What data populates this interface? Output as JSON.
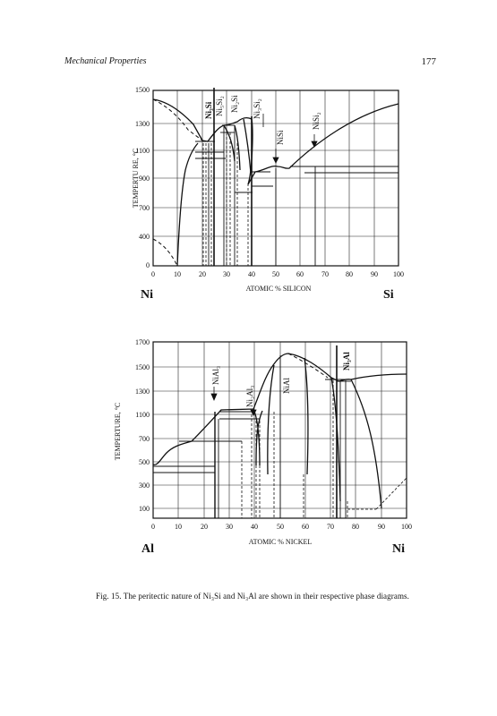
{
  "header": {
    "title": "Mechanical Properties",
    "page": "177"
  },
  "figure_caption": "Fig. 15. The peritectic nature of  Ni₃Si and  Ni₃Al are shown in their respective phase diagrams.",
  "chart_data": [
    {
      "type": "line",
      "ylabel": "TEMPERTU RE, °C",
      "xlabel": "ATOMIC % SILICON",
      "x_ticks": [
        "0",
        "10",
        "20",
        "30",
        "40",
        "50",
        "60",
        "70",
        "80",
        "90",
        "100"
      ],
      "y_ticks": [
        "0",
        "400",
        "700",
        "900",
        "1100",
        "1300",
        "1500"
      ],
      "xlim": [
        0,
        100
      ],
      "ylim": [
        0,
        1500
      ],
      "left_element": "Ni",
      "right_element": "Si",
      "phases": [
        "Ni₃Si",
        "Ni₅Si₂",
        "Ni₂Si",
        "Ni₃Si₂",
        "NiSi",
        "NiSi₂"
      ],
      "series": [
        {
          "values": [
            [
              0,
              1455
            ],
            [
              8,
              1415
            ],
            [
              16,
              1290
            ],
            [
              22,
              1160
            ],
            [
              25,
              1170
            ],
            [
              29,
              1245
            ],
            [
              33,
              1265
            ],
            [
              36,
              1290
            ],
            [
              40,
              1215
            ],
            [
              43,
              1050
            ],
            [
              45,
              1000
            ],
            [
              51,
              1010
            ],
            [
              56,
              990
            ],
            [
              60,
              1040
            ],
            [
              70,
              1150
            ],
            [
              80,
              1255
            ],
            [
              90,
              1330
            ],
            [
              100,
              1410
            ]
          ]
        },
        {
          "values": [
            [
              0,
              1455
            ],
            [
              8,
              1380
            ],
            [
              16,
              1250
            ],
            [
              22,
              1160
            ]
          ]
        },
        {
          "values": [
            [
              0,
              400
            ],
            [
              5,
              270
            ],
            [
              9,
              120
            ],
            [
              10,
              0
            ]
          ]
        },
        {
          "values": [
            [
              10,
              0
            ],
            [
              11,
              600
            ],
            [
              14,
              980
            ],
            [
              18,
              1110
            ],
            [
              21,
              1160
            ]
          ]
        }
      ]
    },
    {
      "type": "line",
      "ylabel": "TEMPERTURE, °C",
      "xlabel": "ATOMIC % NICKEL",
      "x_ticks": [
        "0",
        "10",
        "20",
        "30",
        "40",
        "50",
        "60",
        "70",
        "80",
        "90",
        "100"
      ],
      "y_ticks": [
        "100",
        "300",
        "500",
        "700",
        "1100",
        "1300",
        "1500",
        "1700"
      ],
      "xlim": [
        0,
        100
      ],
      "ylim": [
        0,
        1700
      ],
      "left_element": "Al",
      "right_element": "Ni",
      "phases": [
        "NiAl₃",
        "Ni₂Al₃",
        "NiAl",
        "Ni₃Al"
      ],
      "series": [
        {
          "values": [
            [
              0,
              660
            ],
            [
              2,
              640
            ],
            [
              5,
              750
            ],
            [
              10,
              830
            ],
            [
              15,
              880
            ],
            [
              20,
              1020
            ],
            [
              25,
              1130
            ],
            [
              30,
              1260
            ],
            [
              35,
              1360
            ],
            [
              40,
              1450
            ],
            [
              45,
              1560
            ],
            [
              50,
              1640
            ],
            [
              55,
              1620
            ],
            [
              60,
              1580
            ],
            [
              65,
              1530
            ],
            [
              70,
              1470
            ],
            [
              74,
              1395
            ],
            [
              77,
              1380
            ],
            [
              80,
              1390
            ],
            [
              90,
              1430
            ],
            [
              100,
              1455
            ]
          ]
        },
        {
          "values": [
            [
              25,
              1130
            ],
            [
              35,
              1330
            ],
            [
              42,
              1560
            ],
            [
              50,
              1640
            ],
            [
              60,
              1570
            ],
            [
              70,
              1470
            ],
            [
              74,
              1395
            ]
          ]
        },
        {
          "values": [
            [
              76,
              1380
            ],
            [
              81,
              1200
            ],
            [
              86,
              900
            ],
            [
              89,
              500
            ],
            [
              90,
              170
            ],
            [
              91,
              110
            ]
          ]
        },
        {
          "values": [
            [
              91,
              110
            ],
            [
              96,
              270
            ],
            [
              100,
              390
            ]
          ]
        }
      ]
    }
  ]
}
